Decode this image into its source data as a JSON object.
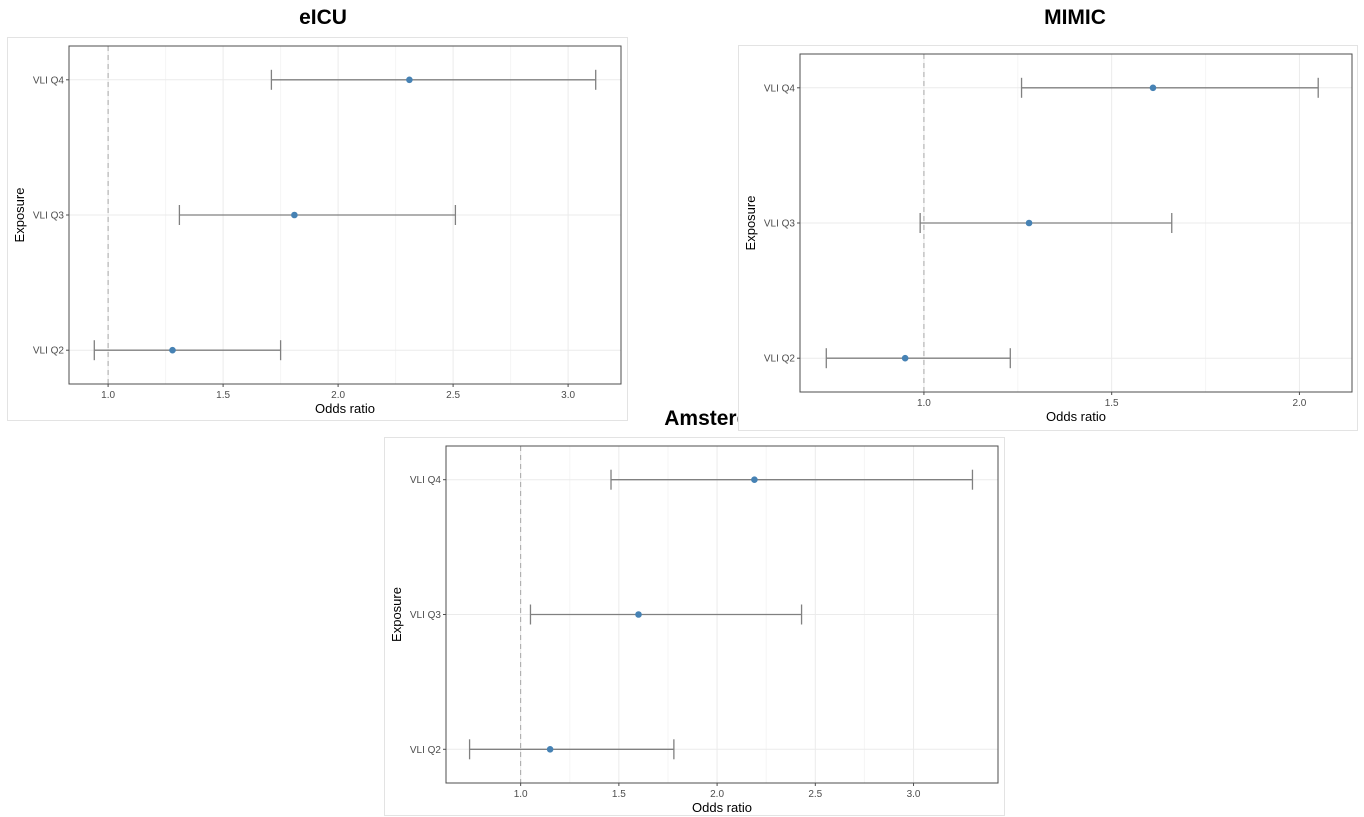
{
  "chart_data": [
    {
      "type": "scatter",
      "title": "eICU",
      "xlabel": "Odds ratio",
      "ylabel": "Exposure",
      "xlim": [
        0.83,
        3.23
      ],
      "xticks": [
        "1.0",
        "1.5",
        "2.0",
        "2.5",
        "3.0"
      ],
      "xtick_values": [
        1.0,
        1.5,
        2.0,
        2.5,
        3.0
      ],
      "reference_line": 1.0,
      "grid": true,
      "categories": [
        "VLI Q4",
        "VLI Q3",
        "VLI Q2"
      ],
      "points": [
        {
          "category": "VLI Q4",
          "or": 2.31,
          "lower": 1.71,
          "upper": 3.12
        },
        {
          "category": "VLI Q3",
          "or": 1.81,
          "lower": 1.31,
          "upper": 2.51
        },
        {
          "category": "VLI Q2",
          "or": 1.28,
          "lower": 0.94,
          "upper": 1.75
        }
      ],
      "point_color": "#4682b4",
      "line_color": "#808080"
    },
    {
      "type": "scatter",
      "title": "MIMIC",
      "xlabel": "Odds ratio",
      "ylabel": "Exposure",
      "xlim": [
        0.67,
        2.14
      ],
      "xticks": [
        "1.0",
        "1.5",
        "2.0"
      ],
      "xtick_values": [
        1.0,
        1.5,
        2.0
      ],
      "reference_line": 1.0,
      "grid": true,
      "categories": [
        "VLI Q4",
        "VLI Q3",
        "VLI Q2"
      ],
      "points": [
        {
          "category": "VLI Q4",
          "or": 1.61,
          "lower": 1.26,
          "upper": 2.05
        },
        {
          "category": "VLI Q3",
          "or": 1.28,
          "lower": 0.99,
          "upper": 1.66
        },
        {
          "category": "VLI Q2",
          "or": 0.95,
          "lower": 0.74,
          "upper": 1.23
        }
      ],
      "point_color": "#4682b4",
      "line_color": "#808080"
    },
    {
      "type": "scatter",
      "title": "Amsterdam",
      "xlabel": "Odds ratio",
      "ylabel": "Exposure",
      "xlim": [
        0.62,
        3.43
      ],
      "xticks": [
        "1.0",
        "1.5",
        "2.0",
        "2.5",
        "3.0"
      ],
      "xtick_values": [
        1.0,
        1.5,
        2.0,
        2.5,
        3.0
      ],
      "reference_line": 1.0,
      "grid": true,
      "categories": [
        "VLI Q4",
        "VLI Q3",
        "VLI Q2"
      ],
      "points": [
        {
          "category": "VLI Q4",
          "or": 2.19,
          "lower": 1.46,
          "upper": 3.3
        },
        {
          "category": "VLI Q3",
          "or": 1.6,
          "lower": 1.05,
          "upper": 2.43
        },
        {
          "category": "VLI Q2",
          "or": 1.15,
          "lower": 0.74,
          "upper": 1.78
        }
      ],
      "point_color": "#4682b4",
      "line_color": "#808080"
    }
  ]
}
